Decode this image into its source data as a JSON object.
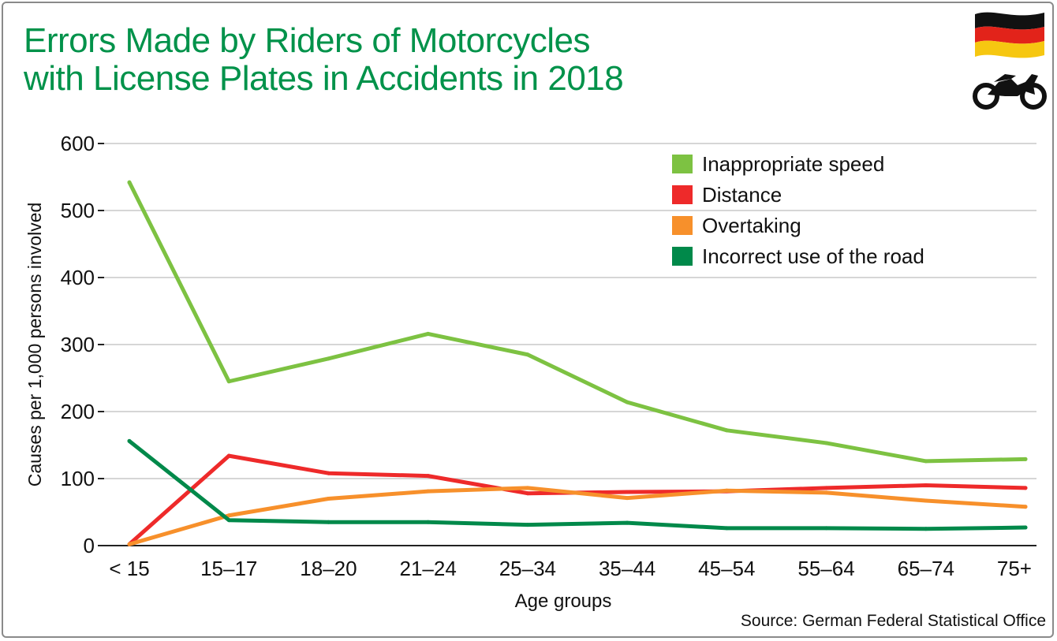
{
  "title_lines": [
    "Errors Made by Riders of Motorcycles",
    "with License Plates in Accidents in 2018"
  ],
  "source": "Source: German Federal Statistical Office",
  "icons": {
    "flag": "germany-flag-icon",
    "vehicle": "motorcycle-icon"
  },
  "colors": {
    "title": "#00924a",
    "inappropriate_speed": "#7dc242",
    "distance": "#ee2a2a",
    "overtaking": "#f7902b",
    "incorrect_use": "#00894a",
    "grid": "#c8c8c8"
  },
  "chart_data": {
    "type": "line",
    "title": "Errors Made by Riders of Motorcycles with License Plates in Accidents in 2018",
    "xlabel": "Age groups",
    "ylabel": "Causes per 1,000 persons involved",
    "ylim": [
      0,
      600
    ],
    "yticks": [
      0,
      100,
      200,
      300,
      400,
      500,
      600
    ],
    "grid": true,
    "legend_position": "top-right",
    "categories": [
      "< 15",
      "15–17",
      "18–20",
      "21–24",
      "25–34",
      "35–44",
      "45–54",
      "55–64",
      "65–74",
      "75+"
    ],
    "series": [
      {
        "name": "Inappropriate speed",
        "color": "#7dc242",
        "values": [
          542,
          245,
          279,
          316,
          285,
          214,
          172,
          153,
          126,
          129
        ]
      },
      {
        "name": "Distance",
        "color": "#ee2a2a",
        "values": [
          2,
          134,
          108,
          104,
          78,
          80,
          81,
          86,
          90,
          86
        ]
      },
      {
        "name": "Overtaking",
        "color": "#f7902b",
        "values": [
          2,
          45,
          70,
          81,
          86,
          71,
          82,
          79,
          67,
          58
        ]
      },
      {
        "name": "Incorrect use of the road",
        "color": "#00894a",
        "values": [
          156,
          38,
          35,
          35,
          31,
          34,
          26,
          26,
          25,
          27
        ]
      }
    ]
  }
}
